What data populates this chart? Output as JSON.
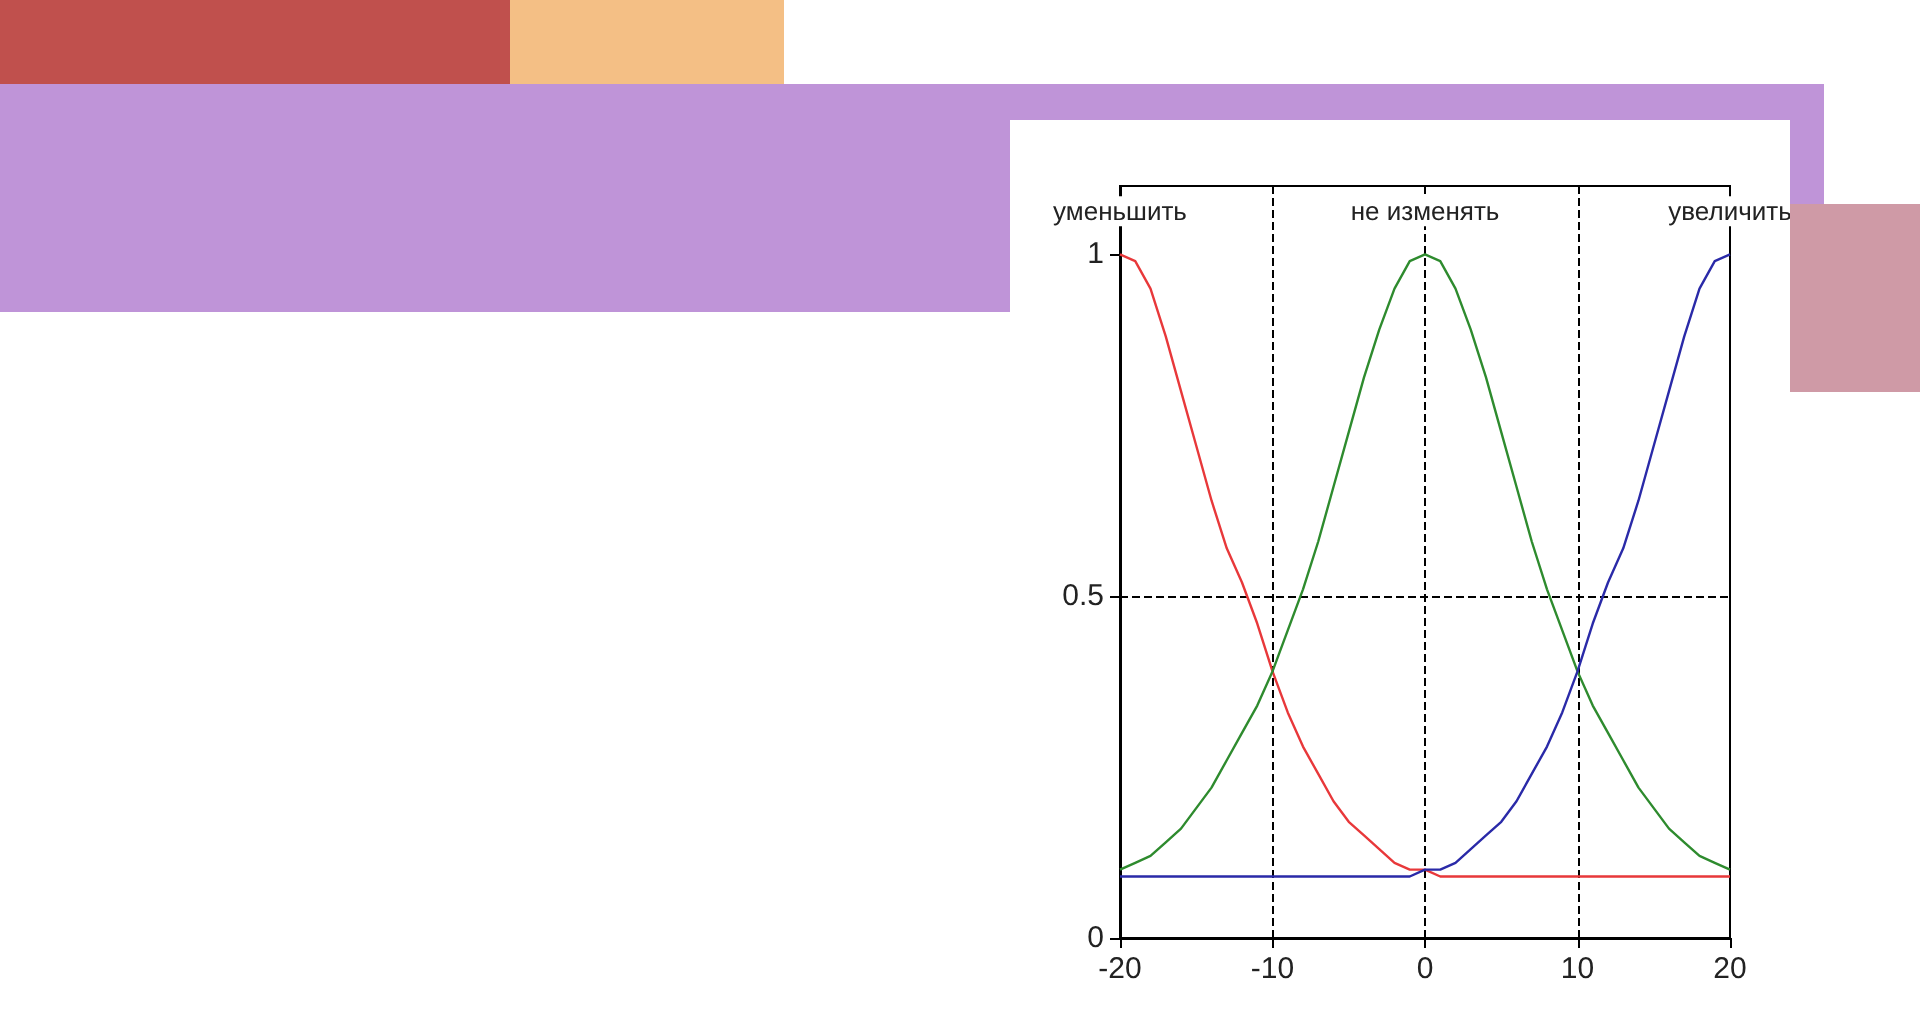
{
  "chart_data": {
    "type": "line",
    "x": [
      -20,
      -19,
      -18,
      -17,
      -16,
      -15,
      -14,
      -13,
      -12,
      -11,
      -10,
      -9,
      -8,
      -7,
      -6,
      -5,
      -4,
      -3,
      -2,
      -1,
      0,
      1,
      2,
      3,
      4,
      5,
      6,
      7,
      8,
      9,
      10,
      11,
      12,
      13,
      14,
      15,
      16,
      17,
      18,
      19,
      20
    ],
    "series": [
      {
        "name": "уменьшить",
        "color": "#e8383a",
        "values": [
          1,
          0.99,
          0.95,
          0.88,
          0.8,
          0.72,
          0.64,
          0.57,
          0.52,
          0.46,
          0.39,
          0.33,
          0.28,
          0.24,
          0.2,
          0.17,
          0.15,
          0.13,
          0.11,
          0.1,
          0.1,
          0.09,
          0.09,
          0.09,
          0.09,
          0.09,
          0.09,
          0.09,
          0.09,
          0.09,
          0.09,
          0.09,
          0.09,
          0.09,
          0.09,
          0.09,
          0.09,
          0.09,
          0.09,
          0.09,
          0.09
        ]
      },
      {
        "name": "не изменять",
        "color": "#2e8b2e",
        "values": [
          0.1,
          0.11,
          0.12,
          0.14,
          0.16,
          0.19,
          0.22,
          0.26,
          0.3,
          0.34,
          0.39,
          0.45,
          0.51,
          0.58,
          0.66,
          0.74,
          0.82,
          0.89,
          0.95,
          0.99,
          1,
          0.99,
          0.95,
          0.89,
          0.82,
          0.74,
          0.66,
          0.58,
          0.51,
          0.45,
          0.39,
          0.34,
          0.3,
          0.26,
          0.22,
          0.19,
          0.16,
          0.14,
          0.12,
          0.11,
          0.1
        ]
      },
      {
        "name": "увеличить",
        "color": "#2a2aa8",
        "values": [
          0.09,
          0.09,
          0.09,
          0.09,
          0.09,
          0.09,
          0.09,
          0.09,
          0.09,
          0.09,
          0.09,
          0.09,
          0.09,
          0.09,
          0.09,
          0.09,
          0.09,
          0.09,
          0.09,
          0.09,
          0.1,
          0.1,
          0.11,
          0.13,
          0.15,
          0.17,
          0.2,
          0.24,
          0.28,
          0.33,
          0.39,
          0.46,
          0.52,
          0.57,
          0.64,
          0.72,
          0.8,
          0.88,
          0.95,
          0.99,
          1
        ]
      }
    ],
    "xlim": [
      -20,
      20
    ],
    "xticks": [
      -20,
      -10,
      0,
      10,
      20
    ],
    "ylim": [
      0,
      1.1
    ],
    "yticks": [
      0,
      0.5,
      1
    ],
    "grid": true,
    "marker": "none",
    "line_style": "solid",
    "legend": false
  }
}
